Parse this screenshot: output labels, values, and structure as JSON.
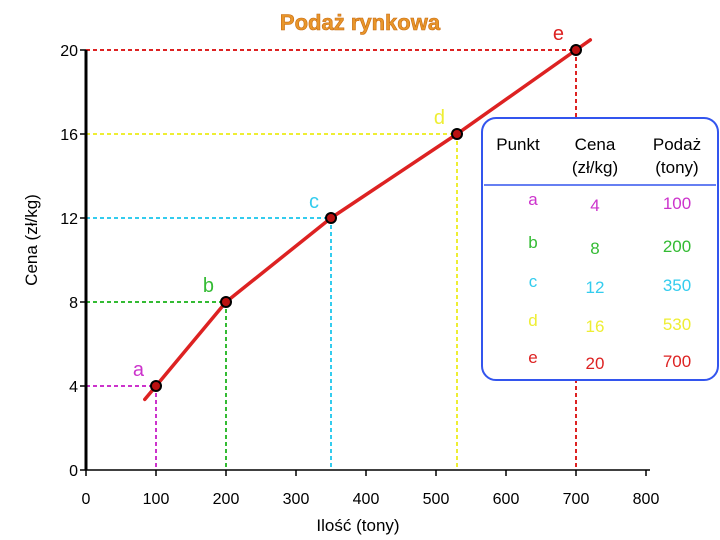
{
  "chart_data": {
    "type": "line",
    "title": "Podaż rynkowa",
    "xlabel": "Ilość (tony)",
    "ylabel": "Cena (zł/kg)",
    "xlim": [
      0,
      800
    ],
    "ylim": [
      0,
      20
    ],
    "x_ticks": [
      "0",
      "100",
      "200",
      "300",
      "400",
      "500",
      "600",
      "700",
      "800"
    ],
    "y_ticks": [
      "0",
      "4",
      "8",
      "12",
      "16",
      "20"
    ],
    "points": [
      {
        "label": "a",
        "x": 100,
        "y": 4,
        "color": "#cc33cc"
      },
      {
        "label": "b",
        "x": 200,
        "y": 8,
        "color": "#33bb33"
      },
      {
        "label": "c",
        "x": 350,
        "y": 12,
        "color": "#33ccee"
      },
      {
        "label": "d",
        "x": 530,
        "y": 16,
        "color": "#eeee33"
      },
      {
        "label": "e",
        "x": 700,
        "y": 20,
        "color": "#dd2222"
      }
    ],
    "curve_color": "#dd2222"
  },
  "table": {
    "headers": [
      "Punkt",
      "Cena (zł/kg)",
      "Podaż (tony)"
    ],
    "rows": [
      {
        "punkt": "a",
        "cena": "4",
        "podaz": "100",
        "color": "#cc33cc"
      },
      {
        "punkt": "b",
        "cena": "8",
        "podaz": "200",
        "color": "#33bb33"
      },
      {
        "punkt": "c",
        "cena": "12",
        "podaz": "350",
        "color": "#33ccee"
      },
      {
        "punkt": "d",
        "cena": "16",
        "podaz": "530",
        "color": "#eeee33"
      },
      {
        "punkt": "e",
        "cena": "20",
        "podaz": "700",
        "color": "#dd2222"
      }
    ],
    "border_color": "#3355ee"
  }
}
